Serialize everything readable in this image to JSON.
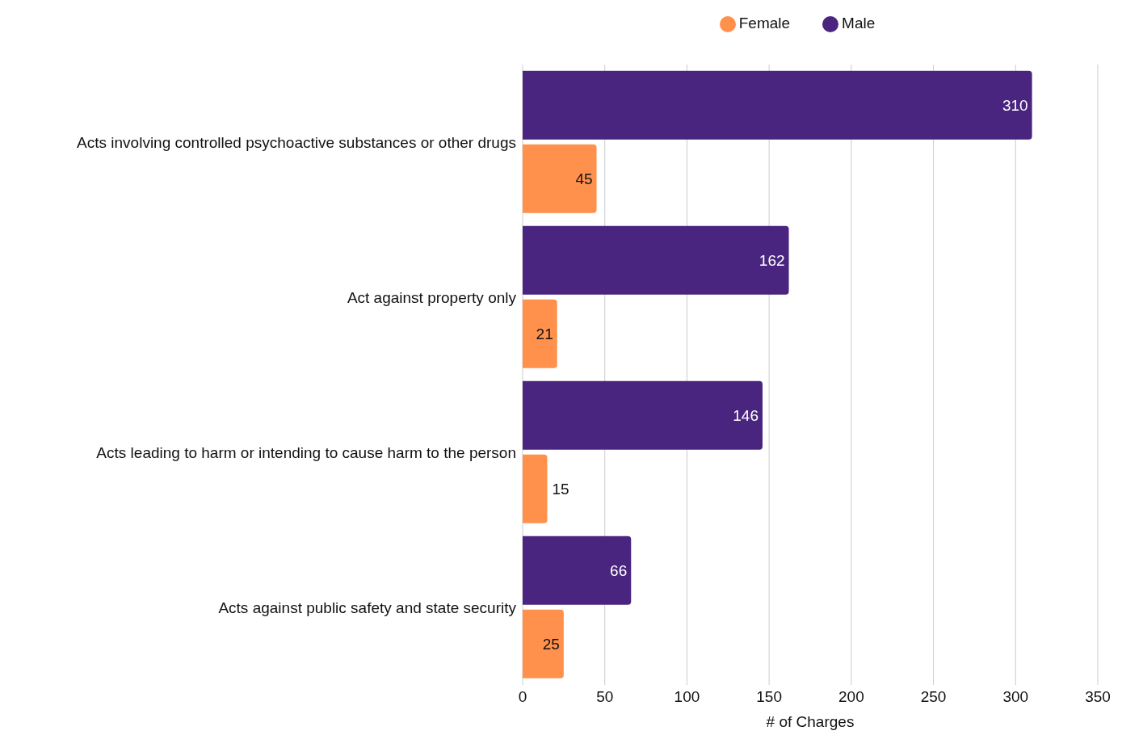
{
  "chart_data": {
    "type": "bar",
    "orientation": "horizontal",
    "xlabel": "# of Charges",
    "categories": [
      "Acts involving controlled psychoactive substances or other drugs",
      "Act against property only",
      "Acts leading to harm or intending to cause harm to the person",
      "Acts against public safety and state security"
    ],
    "series": [
      {
        "name": "Male",
        "color": "#4a2580",
        "values": [
          310,
          162,
          146,
          66
        ]
      },
      {
        "name": "Female",
        "color": "#ff914d",
        "values": [
          45,
          21,
          15,
          25
        ]
      }
    ],
    "xlim": [
      0,
      350
    ],
    "xticks": [
      0,
      50,
      100,
      150,
      200,
      250,
      300,
      350
    ],
    "grid": "x",
    "legend": "top",
    "data_labels": true
  }
}
